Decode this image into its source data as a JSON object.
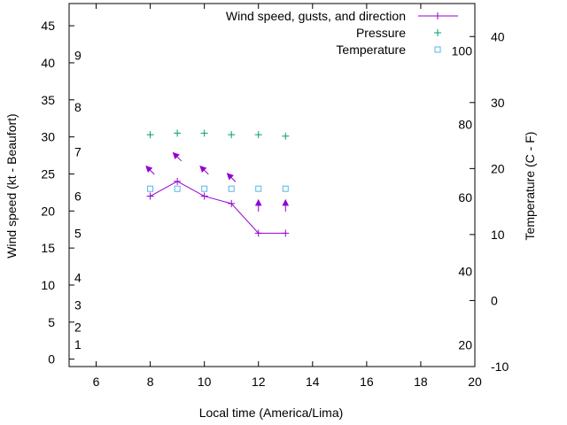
{
  "chart_data": {
    "type": "line",
    "xlabel": "Local time (America/Lima)",
    "ylabel": "Wind speed (kt - Beaufort)",
    "y2label": "Temperature (C - F)",
    "xlim": [
      5,
      20
    ],
    "ylim": [
      -1,
      48
    ],
    "y2lim": [
      -10,
      45
    ],
    "x_ticks": [
      6,
      8,
      10,
      12,
      14,
      16,
      18,
      20
    ],
    "y_ticks": [
      0,
      5,
      10,
      15,
      20,
      25,
      30,
      35,
      40,
      45
    ],
    "y2_ticks": [
      -10,
      0,
      10,
      20,
      30,
      40
    ],
    "beaufort_scale": [
      {
        "label": "1",
        "kt": 2
      },
      {
        "label": "2",
        "kt": 4.3
      },
      {
        "label": "3",
        "kt": 7.3
      },
      {
        "label": "4",
        "kt": 11
      },
      {
        "label": "5",
        "kt": 17
      },
      {
        "label": "6",
        "kt": 22
      },
      {
        "label": "7",
        "kt": 28
      },
      {
        "label": "8",
        "kt": 34
      },
      {
        "label": "9",
        "kt": 41
      }
    ],
    "fahrenheit_scale": [
      {
        "label": "20",
        "c": -6.7
      },
      {
        "label": "40",
        "c": 4.4
      },
      {
        "label": "60",
        "c": 15.6
      },
      {
        "label": "80",
        "c": 26.7
      },
      {
        "label": "100",
        "c": 37.8
      }
    ],
    "legend_position": "top-right",
    "series": [
      {
        "name": "Wind speed, gusts, and direction",
        "color": "#9400d3",
        "marker": "plus",
        "x": [
          8,
          9,
          10,
          11,
          12,
          13
        ],
        "values": [
          22,
          24,
          22,
          21,
          17,
          17
        ]
      },
      {
        "name": "Pressure",
        "color": "#009e73",
        "marker": "plus",
        "x": [
          8,
          9,
          10,
          11,
          12,
          13
        ],
        "values": [
          30.3,
          30.5,
          30.5,
          30.3,
          30.3,
          30.1
        ]
      },
      {
        "name": "Temperature",
        "color": "#56b4e9",
        "marker": "open-square",
        "x": [
          8,
          9,
          10,
          11,
          12,
          13
        ],
        "values": [
          23,
          23,
          23,
          23,
          23,
          23
        ]
      }
    ],
    "direction_arrows": {
      "color": "#9400d3",
      "x": [
        8,
        9,
        10,
        11,
        12,
        13
      ],
      "y": [
        25.5,
        27.3,
        25.5,
        24.5,
        20.7,
        20.7
      ],
      "point_to": [
        "NW",
        "NW",
        "NW",
        "NW",
        "N",
        "N"
      ]
    }
  }
}
